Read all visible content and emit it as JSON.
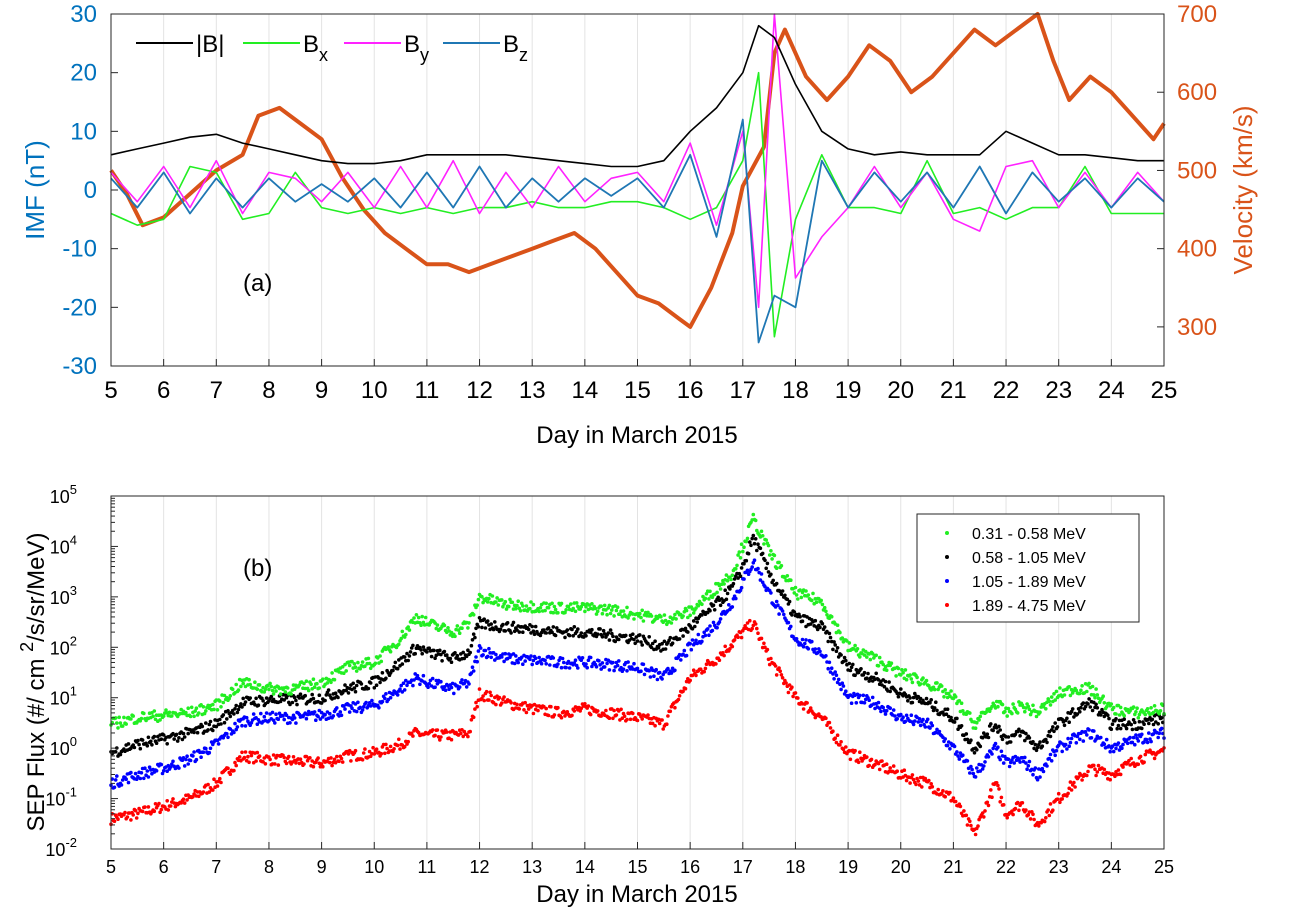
{
  "colors": {
    "bmag": "#000000",
    "bx": "#22ee22",
    "by": "#ff22ff",
    "bz": "#1f77b4",
    "velocity": "#d95319",
    "imf_axis": "#0072bd",
    "vel_axis": "#d95319",
    "sep1": "#22ee22",
    "sep2": "#000000",
    "sep3": "#0000ff",
    "sep4": "#ff0000"
  },
  "chart_data": [
    {
      "type": "line",
      "panel_label": "(a)",
      "xlabel": "Day in March 2015",
      "ylabel": "IMF (nT)",
      "ylabel_right": "Velocity (km/s)",
      "xlim": [
        5,
        25
      ],
      "ylim": [
        -30,
        30
      ],
      "ylim_right": [
        250,
        700
      ],
      "x_ticks": [
        "5",
        "6",
        "7",
        "8",
        "9",
        "10",
        "11",
        "12",
        "13",
        "14",
        "15",
        "16",
        "17",
        "18",
        "19",
        "20",
        "21",
        "22",
        "23",
        "24",
        "25"
      ],
      "y_ticks": [
        "-30",
        "-20",
        "-10",
        "0",
        "10",
        "20",
        "30"
      ],
      "y_right_ticks": [
        "300",
        "400",
        "500",
        "600",
        "700"
      ],
      "grid": "x",
      "legend": {
        "placement": "top-left",
        "entries": [
          "|B|",
          "B",
          "B",
          "B"
        ],
        "subscripts": [
          "",
          "x",
          "y",
          "z"
        ]
      },
      "series": [
        {
          "name": "|B|",
          "x": [
            5,
            5.5,
            6,
            6.5,
            7,
            7.5,
            8,
            8.5,
            9,
            9.5,
            10,
            10.5,
            11,
            11.5,
            12,
            12.5,
            13,
            13.5,
            14,
            14.5,
            15,
            15.5,
            16,
            16.5,
            17,
            17.3,
            17.6,
            18,
            18.5,
            19,
            19.5,
            20,
            20.5,
            21,
            21.5,
            22,
            22.5,
            23,
            23.5,
            24,
            24.5,
            25
          ],
          "y": [
            6,
            7,
            8,
            9,
            9.5,
            8,
            7,
            6,
            5,
            4.5,
            4.5,
            5,
            6,
            6,
            6,
            6,
            5.5,
            5,
            4.5,
            4,
            4,
            5,
            10,
            14,
            20,
            28,
            26,
            18,
            10,
            7,
            6,
            6.5,
            6,
            6,
            6,
            10,
            8,
            6,
            6,
            5.5,
            5,
            5
          ]
        },
        {
          "name": "Bx",
          "x": [
            5,
            5.5,
            6,
            6.5,
            7,
            7.5,
            8,
            8.5,
            9,
            9.5,
            10,
            10.5,
            11,
            11.5,
            12,
            12.5,
            13,
            13.5,
            14,
            14.5,
            15,
            15.5,
            16,
            16.5,
            17,
            17.3,
            17.6,
            18,
            18.5,
            19,
            19.5,
            20,
            20.5,
            21,
            21.5,
            22,
            22.5,
            23,
            23.5,
            24,
            24.5,
            25
          ],
          "y": [
            -4,
            -6,
            -5,
            4,
            3,
            -5,
            -4,
            3,
            -3,
            -4,
            -3,
            -4,
            -3,
            -4,
            -3,
            -3,
            -2,
            -3,
            -3,
            -2,
            -2,
            -3,
            -5,
            -3,
            5,
            20,
            -25,
            -5,
            6,
            -3,
            -3,
            -4,
            5,
            -4,
            -3,
            -5,
            -3,
            -3,
            4,
            -4,
            -4,
            -4
          ]
        },
        {
          "name": "By",
          "x": [
            5,
            5.5,
            6,
            6.5,
            7,
            7.5,
            8,
            8.5,
            9,
            9.5,
            10,
            10.5,
            11,
            11.5,
            12,
            12.5,
            13,
            13.5,
            14,
            14.5,
            15,
            15.5,
            16,
            16.5,
            17,
            17.3,
            17.6,
            18,
            18.5,
            19,
            19.5,
            20,
            20.5,
            21,
            21.5,
            22,
            22.5,
            23,
            23.5,
            24,
            24.5,
            25
          ],
          "y": [
            3,
            -2,
            4,
            -3,
            5,
            -4,
            3,
            2,
            -2,
            3,
            -3,
            4,
            -3,
            5,
            -4,
            3,
            -3,
            4,
            -2,
            2,
            3,
            -2,
            8,
            -6,
            10,
            -20,
            30,
            -15,
            -8,
            -3,
            4,
            -3,
            3,
            -5,
            -7,
            4,
            5,
            -3,
            3,
            -3,
            3,
            -2
          ]
        },
        {
          "name": "Bz",
          "x": [
            5,
            5.5,
            6,
            6.5,
            7,
            7.5,
            8,
            8.5,
            9,
            9.5,
            10,
            10.5,
            11,
            11.5,
            12,
            12.5,
            13,
            13.5,
            14,
            14.5,
            15,
            15.5,
            16,
            16.5,
            17,
            17.3,
            17.6,
            18,
            18.5,
            19,
            19.5,
            20,
            20.5,
            21,
            21.5,
            22,
            22.5,
            23,
            23.5,
            24,
            24.5,
            25
          ],
          "y": [
            2,
            -3,
            3,
            -4,
            2,
            -3,
            2,
            -2,
            1,
            -2,
            2,
            -3,
            3,
            -3,
            4,
            -3,
            2,
            -2,
            2,
            -1,
            2,
            -3,
            6,
            -8,
            12,
            -26,
            -18,
            -20,
            5,
            -3,
            3,
            -2,
            3,
            -3,
            4,
            -4,
            3,
            -2,
            2,
            -3,
            2,
            -2
          ]
        },
        {
          "name": "Velocity",
          "x": [
            5,
            5.3,
            5.6,
            6,
            6.5,
            7,
            7.5,
            7.8,
            8.2,
            8.6,
            9,
            9.4,
            9.8,
            10.2,
            10.6,
            11,
            11.4,
            11.8,
            12.2,
            12.6,
            13,
            13.4,
            13.8,
            14.2,
            14.6,
            15,
            15.4,
            15.8,
            16,
            16.4,
            16.8,
            17,
            17.4,
            17.6,
            17.8,
            18.2,
            18.6,
            19,
            19.4,
            19.8,
            20.2,
            20.6,
            21,
            21.4,
            21.8,
            22.2,
            22.6,
            22.9,
            23.2,
            23.6,
            24,
            24.4,
            24.8,
            25
          ],
          "y": [
            500,
            470,
            430,
            440,
            470,
            500,
            520,
            570,
            580,
            560,
            540,
            490,
            450,
            420,
            400,
            380,
            380,
            370,
            380,
            390,
            400,
            410,
            420,
            400,
            370,
            340,
            330,
            310,
            300,
            350,
            420,
            480,
            530,
            650,
            680,
            620,
            590,
            620,
            660,
            640,
            600,
            620,
            650,
            680,
            660,
            680,
            700,
            640,
            590,
            620,
            600,
            570,
            540,
            560
          ]
        }
      ]
    },
    {
      "type": "scatter",
      "panel_label": "(b)",
      "xlabel": "Day in March 2015",
      "ylabel": "SEP Flux (#/ cm 2/s/sr/MeV)",
      "ylabel_parts": [
        "SEP Flux (#/  cm ",
        "2",
        "/s/sr/MeV)"
      ],
      "xlim": [
        5,
        25
      ],
      "ylim": [
        0.01,
        100000
      ],
      "yscale": "log",
      "x_ticks": [
        "5",
        "6",
        "7",
        "8",
        "9",
        "10",
        "11",
        "12",
        "13",
        "14",
        "15",
        "16",
        "17",
        "18",
        "19",
        "20",
        "21",
        "22",
        "23",
        "24",
        "25"
      ],
      "y_ticks": [
        "10",
        "10",
        "10",
        "10",
        "10",
        "10",
        "10",
        "10"
      ],
      "y_tick_exponents": [
        "-2",
        "-1",
        "0",
        "1",
        "2",
        "3",
        "4",
        "5"
      ],
      "grid": "x",
      "legend": {
        "placement": "top-right"
      },
      "series": [
        {
          "name": "0.31 - 0.58 MeV",
          "x": [
            5,
            5.5,
            6,
            6.5,
            7,
            7.5,
            8,
            8.5,
            9,
            9.5,
            10,
            10.5,
            10.8,
            11,
            11.5,
            11.8,
            12,
            12.5,
            13,
            13.5,
            14,
            14.5,
            15,
            15.5,
            16,
            16.5,
            16.8,
            17,
            17.2,
            17.5,
            18,
            18.5,
            19,
            19.5,
            20,
            20.5,
            21,
            21.4,
            21.8,
            22,
            22.3,
            22.6,
            23,
            23.3,
            23.6,
            24,
            24.5,
            25
          ],
          "y": [
            3,
            4,
            4.5,
            5,
            7,
            20,
            15,
            15,
            20,
            40,
            50,
            150,
            400,
            300,
            200,
            300,
            1000,
            700,
            650,
            600,
            600,
            550,
            450,
            350,
            500,
            1500,
            3000,
            10000,
            35000,
            8000,
            1200,
            800,
            100,
            60,
            30,
            20,
            10,
            3,
            8,
            5,
            7,
            5,
            12,
            15,
            15,
            6,
            5,
            6
          ]
        },
        {
          "name": "0.58 - 1.05 MeV",
          "x": [
            5,
            5.5,
            6,
            6.5,
            7,
            7.5,
            8,
            8.5,
            9,
            9.5,
            10,
            10.5,
            10.8,
            11,
            11.5,
            11.8,
            12,
            12.5,
            13,
            13.5,
            14,
            14.5,
            15,
            15.5,
            16,
            16.5,
            16.8,
            17,
            17.2,
            17.5,
            18,
            18.5,
            19,
            19.5,
            20,
            20.5,
            21,
            21.4,
            21.8,
            22,
            22.3,
            22.6,
            23,
            23.3,
            23.6,
            24,
            24.5,
            25
          ],
          "y": [
            0.8,
            1.2,
            1.5,
            2,
            3,
            8,
            9,
            9,
            10,
            15,
            20,
            50,
            100,
            80,
            60,
            80,
            300,
            250,
            230,
            200,
            200,
            170,
            150,
            100,
            250,
            700,
            1500,
            4000,
            15000,
            3000,
            400,
            250,
            40,
            25,
            12,
            8,
            4,
            1,
            3,
            1.5,
            2,
            1,
            3,
            5,
            8,
            3,
            3,
            4
          ]
        },
        {
          "name": "1.05 - 1.89 MeV",
          "x": [
            5,
            5.5,
            6,
            6.5,
            7,
            7.5,
            8,
            8.5,
            9,
            9.5,
            10,
            10.5,
            10.8,
            11,
            11.5,
            11.8,
            12,
            12.5,
            13,
            13.5,
            14,
            14.5,
            15,
            15.5,
            16,
            16.5,
            16.8,
            17,
            17.2,
            17.5,
            18,
            18.5,
            19,
            19.5,
            20,
            20.5,
            21,
            21.4,
            21.8,
            22,
            22.3,
            22.6,
            23,
            23.3,
            23.6,
            24,
            24.5,
            25
          ],
          "y": [
            0.2,
            0.3,
            0.4,
            0.6,
            1.2,
            3.5,
            4,
            4,
            4.5,
            6,
            7,
            15,
            25,
            20,
            15,
            20,
            90,
            60,
            55,
            50,
            50,
            45,
            40,
            25,
            100,
            300,
            800,
            2000,
            5000,
            1200,
            150,
            80,
            10,
            8,
            4,
            3,
            1,
            0.3,
            1,
            0.5,
            0.6,
            0.3,
            1,
            1.5,
            2,
            1,
            1.5,
            2
          ]
        },
        {
          "name": "1.89 - 4.75 MeV",
          "x": [
            5,
            5.5,
            6,
            6.5,
            7,
            7.5,
            8,
            8.5,
            9,
            9.5,
            10,
            10.5,
            10.8,
            11,
            11.5,
            11.8,
            12,
            12.5,
            13,
            13.5,
            14,
            14.5,
            15,
            15.5,
            16,
            16.5,
            16.8,
            17,
            17.2,
            17.5,
            18,
            18.5,
            19,
            19.5,
            20,
            20.5,
            21,
            21.4,
            21.8,
            22,
            22.3,
            22.6,
            23,
            23.3,
            23.6,
            24,
            24.5,
            25
          ],
          "y": [
            0.04,
            0.05,
            0.07,
            0.1,
            0.2,
            0.7,
            0.6,
            0.55,
            0.5,
            0.7,
            0.8,
            1.2,
            2,
            1.8,
            1.8,
            2,
            12,
            8,
            6,
            5,
            6,
            5,
            4,
            3,
            25,
            60,
            120,
            200,
            300,
            60,
            10,
            4,
            0.8,
            0.5,
            0.3,
            0.2,
            0.1,
            0.02,
            0.2,
            0.05,
            0.08,
            0.03,
            0.1,
            0.2,
            0.4,
            0.3,
            0.6,
            0.9
          ]
        }
      ]
    }
  ]
}
